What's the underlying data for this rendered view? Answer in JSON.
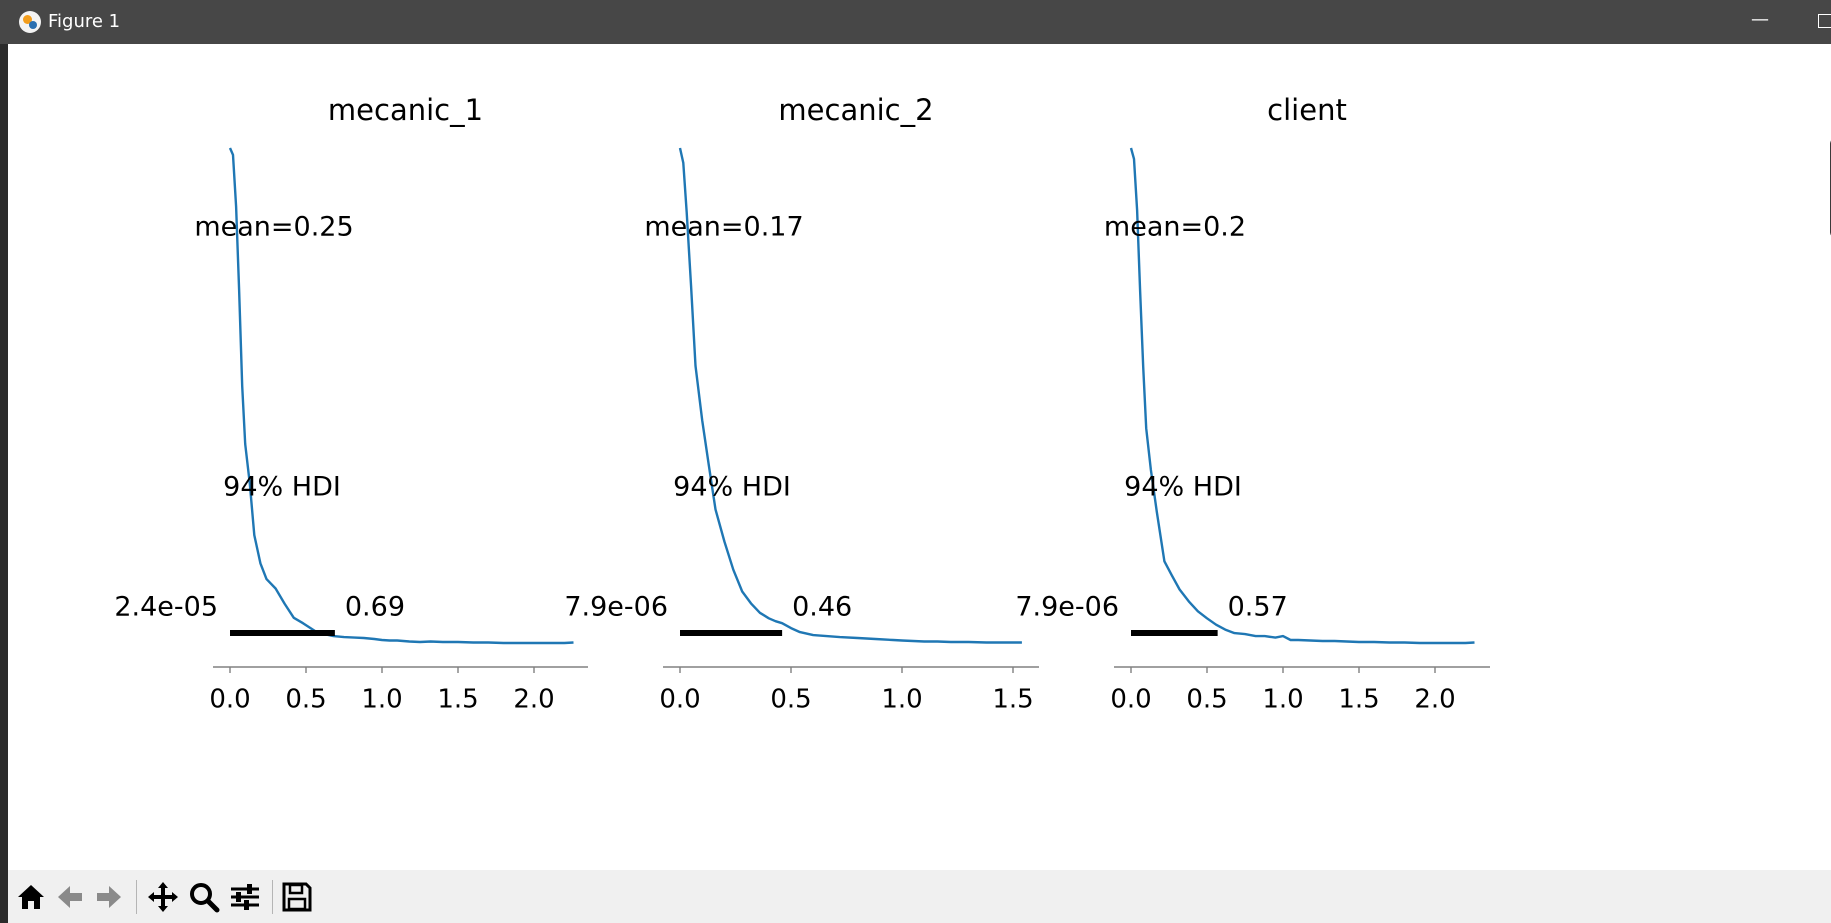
{
  "window": {
    "title": "Figure 1"
  },
  "toolbar": {
    "buttons": [
      {
        "name": "home-icon",
        "label": "Home"
      },
      {
        "name": "back-arrow-icon",
        "label": "Back"
      },
      {
        "name": "forward-arrow-icon",
        "label": "Forward"
      },
      {
        "name": "pan-icon",
        "label": "Pan"
      },
      {
        "name": "zoom-icon",
        "label": "Zoom"
      },
      {
        "name": "configure-subplots-icon",
        "label": "Configure subplots"
      },
      {
        "name": "save-icon",
        "label": "Save"
      }
    ]
  },
  "colors": {
    "line": "#1f77b4",
    "hdi_bar": "#000000",
    "axis": "#808080",
    "text": "#000000"
  },
  "chart_data": [
    {
      "type": "line",
      "title": "mecanic_1",
      "mean_label": "mean=0.25",
      "hdi_label": "94% HDI",
      "hdi": [
        2.4e-05,
        0.69
      ],
      "hdi_low_label": "2.4e-05",
      "hdi_high_label": "0.69",
      "xlim": [
        -0.12,
        2.38
      ],
      "ticks": [
        0.0,
        0.5,
        1.0,
        1.5,
        2.0
      ],
      "tick_labels": [
        "0.0",
        "0.5",
        "1.0",
        "1.5",
        "2.0"
      ],
      "x": [
        0.0,
        0.02,
        0.04,
        0.06,
        0.08,
        0.1,
        0.13,
        0.16,
        0.2,
        0.24,
        0.3,
        0.36,
        0.42,
        0.48,
        0.54,
        0.58,
        0.62,
        0.68,
        0.75,
        0.82,
        0.88,
        0.95,
        1.0,
        1.05,
        1.1,
        1.18,
        1.25,
        1.32,
        1.4,
        1.5,
        1.6,
        1.7,
        1.8,
        1.9,
        2.0,
        2.1,
        2.2,
        2.26
      ],
      "density": [
        1.0,
        0.976,
        0.88,
        0.719,
        0.519,
        0.375,
        0.325,
        0.277,
        0.179,
        0.137,
        0.103,
        0.067,
        0.049,
        0.023,
        0.016,
        0.012,
        0.008,
        0.006,
        0.005,
        0.004,
        0.004,
        0.003,
        0.002,
        0.001,
        0.001,
        0.0005,
        0.0003,
        0.0002,
        0.0001,
        5e-05,
        3e-05,
        2e-05,
        1e-05,
        1e-05,
        5e-06,
        3e-06,
        2e-06,
        0.0
      ],
      "curve_y": [
        1.0,
        0.986,
        0.882,
        0.714,
        0.519,
        0.402,
        0.322,
        0.218,
        0.161,
        0.129,
        0.11,
        0.079,
        0.051,
        0.04,
        0.028,
        0.02,
        0.018,
        0.014,
        0.012,
        0.011,
        0.01,
        0.008,
        0.006,
        0.005,
        0.005,
        0.003,
        0.002,
        0.003,
        0.002,
        0.002,
        0.001,
        0.001,
        0.0,
        0.0,
        0.0,
        0.0,
        0.0,
        0.001
      ]
    },
    {
      "type": "line",
      "title": "mecanic_2",
      "mean_label": "mean=0.17",
      "hdi_label": "94% HDI",
      "hdi": [
        7.9e-06,
        0.46
      ],
      "hdi_low_label": "7.9e-06",
      "hdi_high_label": "0.46",
      "xlim": [
        -0.08,
        1.6
      ],
      "ticks": [
        0.0,
        0.5,
        1.0,
        1.5
      ],
      "tick_labels": [
        "0.0",
        "0.5",
        "1.0",
        "1.5"
      ],
      "x": [
        0.0,
        0.015,
        0.03,
        0.05,
        0.07,
        0.1,
        0.13,
        0.16,
        0.2,
        0.24,
        0.28,
        0.32,
        0.36,
        0.4,
        0.43,
        0.46,
        0.5,
        0.54,
        0.6,
        0.66,
        0.72,
        0.8,
        0.88,
        0.96,
        1.0,
        1.05,
        1.1,
        1.16,
        1.22,
        1.3,
        1.38,
        1.46,
        1.54
      ],
      "curve_y": [
        1.0,
        0.97,
        0.87,
        0.72,
        0.56,
        0.45,
        0.358,
        0.27,
        0.205,
        0.148,
        0.104,
        0.08,
        0.061,
        0.05,
        0.044,
        0.04,
        0.03,
        0.022,
        0.016,
        0.014,
        0.012,
        0.01,
        0.008,
        0.006,
        0.005,
        0.004,
        0.003,
        0.003,
        0.002,
        0.002,
        0.001,
        0.001,
        0.001
      ]
    },
    {
      "type": "line",
      "title": "client",
      "mean_label": "mean=0.2",
      "hdi_label": "94% HDI",
      "hdi": [
        7.9e-06,
        0.57
      ],
      "hdi_low_label": "7.9e-06",
      "hdi_high_label": "0.57",
      "xlim": [
        -0.12,
        2.36
      ],
      "ticks": [
        0.0,
        0.5,
        1.0,
        1.5,
        2.0
      ],
      "tick_labels": [
        "0.0",
        "0.5",
        "1.0",
        "1.5",
        "2.0"
      ],
      "x": [
        0.0,
        0.02,
        0.04,
        0.06,
        0.08,
        0.1,
        0.13,
        0.17,
        0.22,
        0.27,
        0.32,
        0.38,
        0.44,
        0.5,
        0.56,
        0.62,
        0.68,
        0.75,
        0.82,
        0.88,
        0.95,
        1.0,
        1.05,
        1.1,
        1.18,
        1.26,
        1.34,
        1.42,
        1.5,
        1.6,
        1.7,
        1.8,
        1.9,
        2.0,
        2.1,
        2.2,
        2.26
      ],
      "curve_y": [
        1.0,
        0.978,
        0.875,
        0.712,
        0.558,
        0.434,
        0.351,
        0.265,
        0.165,
        0.136,
        0.108,
        0.084,
        0.064,
        0.05,
        0.037,
        0.027,
        0.02,
        0.018,
        0.014,
        0.014,
        0.011,
        0.014,
        0.006,
        0.006,
        0.005,
        0.004,
        0.004,
        0.003,
        0.002,
        0.002,
        0.001,
        0.001,
        0.0,
        0.0,
        0.0,
        0.0,
        0.001
      ]
    }
  ]
}
